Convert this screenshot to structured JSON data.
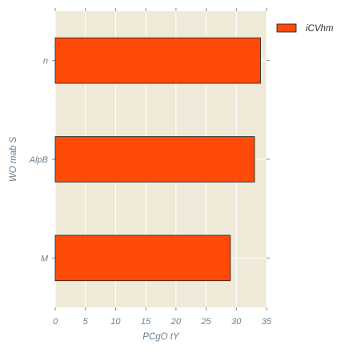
{
  "chart_data": {
    "type": "bar",
    "orientation": "horizontal",
    "categories": [
      "M",
      "AlpB",
      "n"
    ],
    "series": [
      {
        "name": "iCVhm",
        "values": [
          29,
          33,
          34
        ],
        "color": "#ff4a0a"
      }
    ],
    "xlabel": "PCgO tY",
    "ylabel": "WO mab S",
    "xlim": [
      0,
      35
    ],
    "xticks": [
      "0",
      "5",
      "10",
      "15",
      "20",
      "25",
      "30",
      "35"
    ],
    "grid": true,
    "legend_position": "top-right outside",
    "background_color": "#efe9d8",
    "grid_color": "#ffffff",
    "text_color": "#6b7f8f"
  }
}
